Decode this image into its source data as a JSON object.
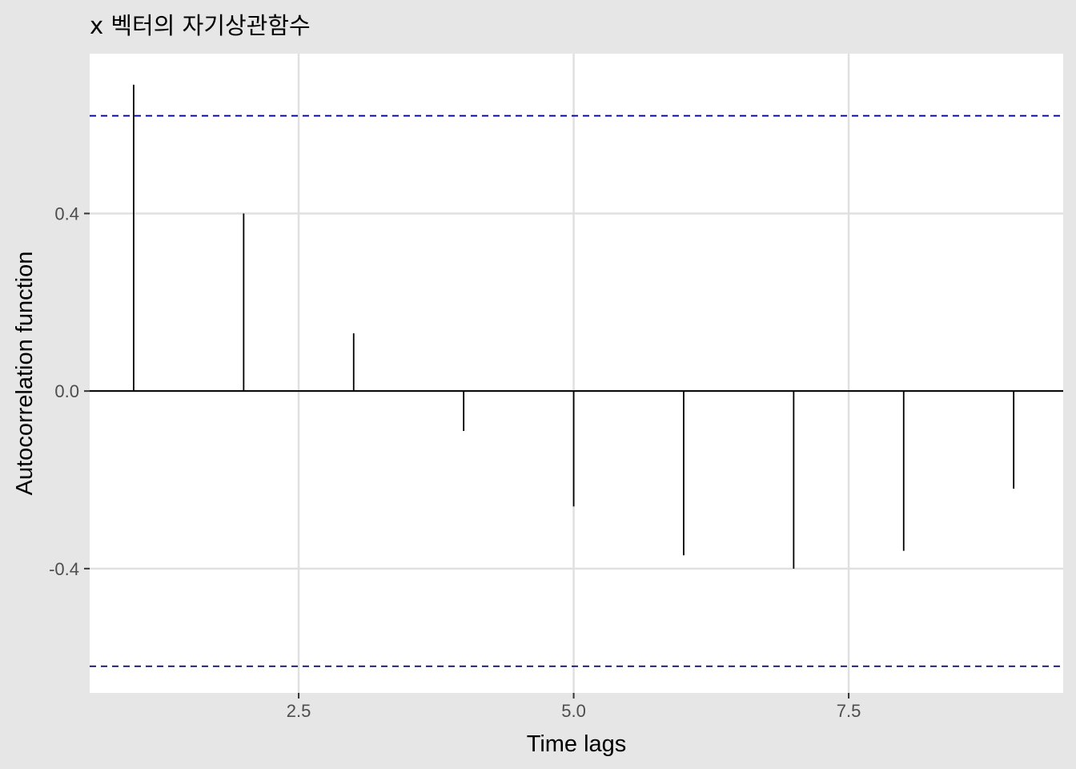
{
  "chart_data": {
    "type": "bar",
    "title": "x 벡터의 자기상관함수",
    "xlabel": "Time lags",
    "ylabel": "Autocorrelation function",
    "x": [
      1,
      2,
      3,
      4,
      5,
      6,
      7,
      8,
      9
    ],
    "values": [
      0.69,
      0.4,
      0.13,
      -0.09,
      -0.26,
      -0.37,
      -0.4,
      -0.36,
      -0.22
    ],
    "xlim": [
      0.6,
      9.45
    ],
    "ylim": [
      -0.68,
      0.76
    ],
    "xticks": [
      2.5,
      5.0,
      7.5
    ],
    "xtick_labels": [
      "2.5",
      "5.0",
      "7.5"
    ],
    "yticks": [
      -0.4,
      0.0,
      0.4
    ],
    "ytick_labels": [
      "-0.4",
      "0.0",
      "0.4"
    ],
    "confidence_bound": 0.62,
    "grid": true,
    "colors": {
      "panel_background": "#ffffff",
      "plot_background": "#e6e6e6",
      "grid": "#e0e0e0",
      "spike": "#000000",
      "zero_line": "#000000",
      "confidence_line": "#00008b"
    }
  }
}
